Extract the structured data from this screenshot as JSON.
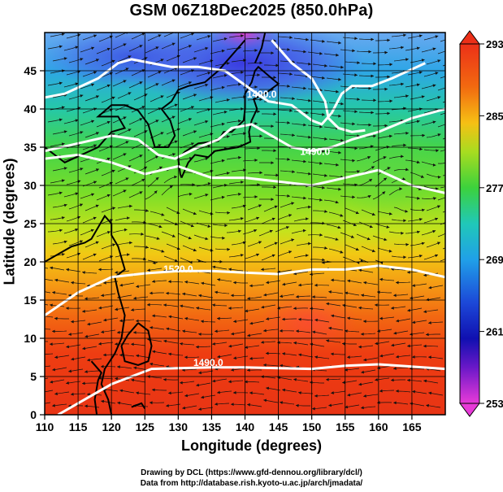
{
  "title": "GSM 06Z18Dec2025 (850.0hPa)",
  "axes": {
    "xlabel": "Longitude (degrees)",
    "ylabel": "Latitude  (degrees)",
    "x_ticks": [
      "110",
      "115",
      "120",
      "125",
      "130",
      "135",
      "140",
      "145",
      "150",
      "155",
      "160",
      "165"
    ],
    "y_ticks": [
      "0",
      "5",
      "10",
      "15",
      "20",
      "25",
      "30",
      "35",
      "40",
      "45"
    ]
  },
  "colorbar": {
    "labels": [
      "293",
      "285",
      "277",
      "269",
      "261",
      "253"
    ]
  },
  "contour_labels": [
    {
      "text": "1400.0",
      "lon": 142.5,
      "lat": 41.5
    },
    {
      "text": "1490.0",
      "lon": 150.5,
      "lat": 34.0
    },
    {
      "text": "1520.0",
      "lon": 130.0,
      "lat": 18.6
    },
    {
      "text": "1490.0",
      "lon": 134.5,
      "lat": 6.4
    }
  ],
  "credits": {
    "line1": "Drawing by DCL (https://www.gfd-dennou.org/library/dcl/)",
    "line2": "Data from http://database.rish.kyoto-u.ac.jp/arch/jmadata/"
  },
  "chart_data": {
    "type": "heatmap",
    "title": "GSM 06Z18Dec2025 (850.0hPa)",
    "xlabel": "Longitude (degrees)",
    "ylabel": "Latitude  (degrees)",
    "xlim": [
      110,
      170
    ],
    "ylim": [
      0,
      50
    ],
    "colorbar_range": [
      253,
      293
    ],
    "colorbar_ticks": [
      253,
      261,
      269,
      277,
      285,
      293
    ],
    "grid": true,
    "overlays": [
      "wind streamlines",
      "geopotential height contours (white)",
      "coastlines"
    ]
  }
}
